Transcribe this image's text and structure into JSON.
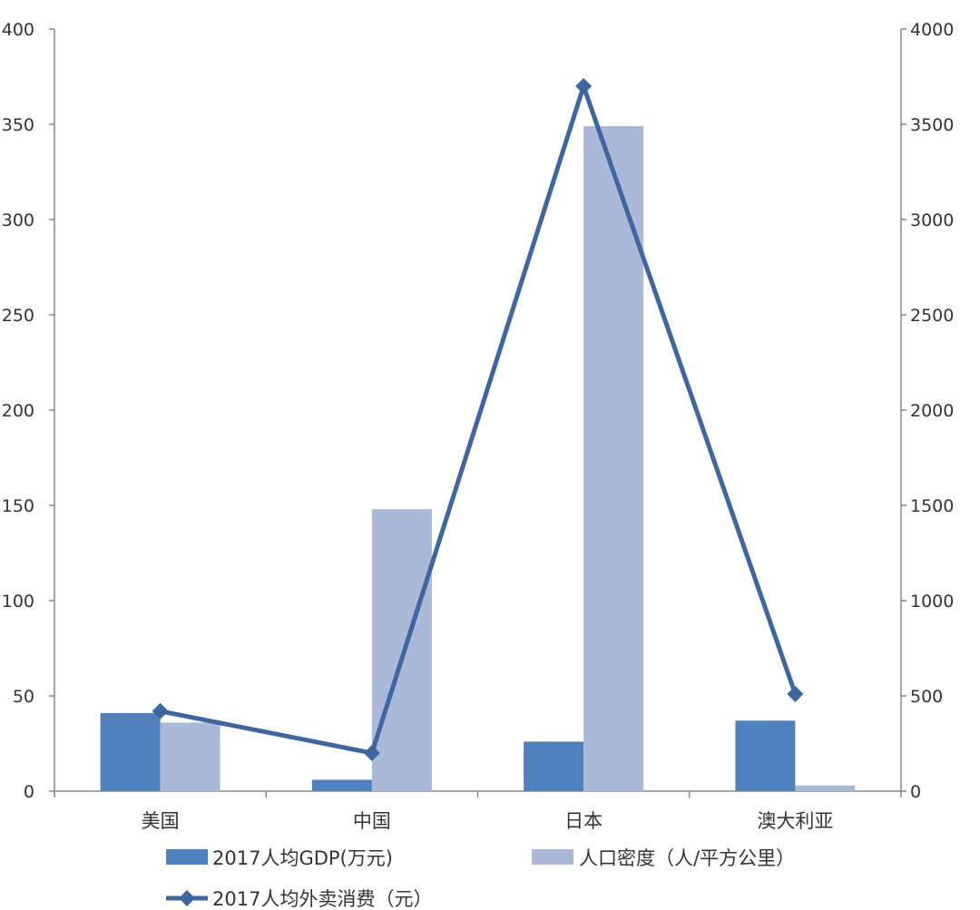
{
  "chart_data": {
    "type": "bar",
    "categories": [
      "美国",
      "中国",
      "日本",
      "澳大利亚"
    ],
    "series": [
      {
        "name": "2017人均GDP(万元)",
        "type": "bar",
        "axis": "left",
        "color": "#4f81bd",
        "values": [
          41,
          6,
          26,
          37
        ]
      },
      {
        "name": "人口密度（人/平方公里）",
        "type": "bar",
        "axis": "left",
        "color": "#aab9d7",
        "values": [
          36,
          148,
          349,
          3
        ]
      },
      {
        "name": "2017人均外卖消费（元）",
        "type": "line",
        "axis": "right",
        "color": "#3f66a0",
        "values": [
          420,
          200,
          3700,
          510
        ]
      }
    ],
    "y_left": {
      "min": 0,
      "max": 400,
      "ticks": [
        "0",
        "50",
        "100",
        "150",
        "200",
        "250",
        "300",
        "350",
        "400"
      ]
    },
    "y_right": {
      "min": 0,
      "max": 4000,
      "ticks": [
        "0",
        "500",
        "1000",
        "1500",
        "2000",
        "2500",
        "3000",
        "3500",
        "4000"
      ]
    },
    "grid": false,
    "legend": "bottom"
  }
}
